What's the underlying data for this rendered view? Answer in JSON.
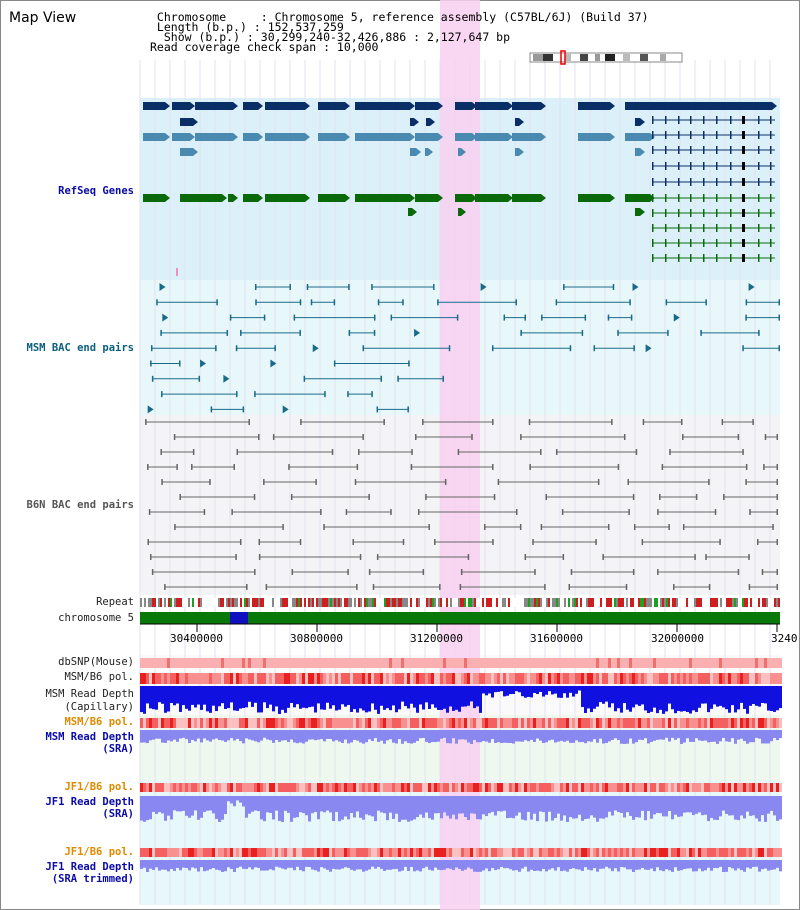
{
  "page": {
    "title": "Map View"
  },
  "header": {
    "lines": [
      " Chromosome     : Chromosome 5, reference assembly (C57BL/6J) (Build 37)",
      " Length (b.p.) : 152,537,259",
      "  Show (b.p.) : 30,299,240-32,426,886 : 2,127,647 bp",
      "Read coverage check span : 10,000"
    ]
  },
  "tracks": {
    "refseq": "RefSeq Genes",
    "msm_bac": "MSM BAC end pairs",
    "b6n_bac": "B6N BAC end pairs",
    "repeat": "Repeat",
    "chromosome": "chromosome 5",
    "dbsnp": "dbSNP(Mouse)",
    "msm_b6_pol": "MSM/B6 pol.",
    "msm_depth_cap_1": "MSM Read Depth",
    "msm_depth_cap_2": "(Capillary)",
    "msm_b6_pol_sra": "MSM/B6 pol.",
    "msm_depth_sra_1": "MSM Read Depth",
    "msm_depth_sra_2": "(SRA)",
    "jf1_b6_pol": "JF1/B6 pol.",
    "jf1_depth_1": "JF1 Read Depth",
    "jf1_depth_2": "(SRA)",
    "jf1_b6_pol_trim": "JF1/B6 pol.",
    "jf1_trim_1": "JF1 Read Depth",
    "jf1_trim_2": "(SRA trimmed)"
  },
  "axis": {
    "ticks": [
      "30400000",
      "30800000",
      "31200000",
      "31600000",
      "32000000",
      "3240"
    ]
  },
  "colors": {
    "refseq_dark": "#0a2f66",
    "refseq_mid": "#4a8ab0",
    "refseq_green": "#0a6a0a",
    "msm_bac": "#1a6a8a",
    "b6n_bac": "#666666",
    "highlight": "#f8d0f0",
    "chromosome": "#087808",
    "depth_blue": "#1010e0",
    "depth_light": "#8888f0",
    "snp": "#f04040"
  }
}
